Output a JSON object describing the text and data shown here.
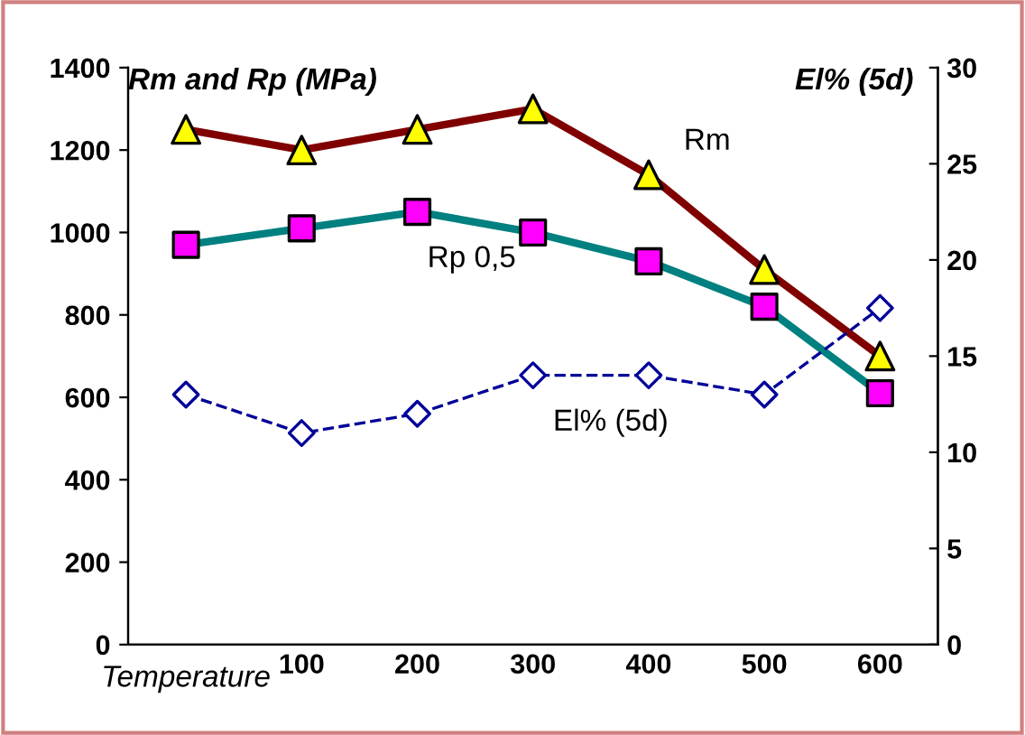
{
  "chart_data": {
    "type": "line",
    "ylabel": "Rm and Rp (MPa)",
    "y2label": "El% (5d)",
    "xlabel": "Temperature",
    "categories": [
      null,
      "100",
      "200",
      "300",
      "400",
      "500",
      "600"
    ],
    "series": [
      {
        "name": "Rm",
        "color": "#800000",
        "marker": "triangle",
        "colors": [
          "#ffff00",
          "#ffff00",
          "#ffff00",
          "#ffff00",
          "#ffff00",
          "#ffff00",
          "#ffff00"
        ],
        "line_style": "solid",
        "values": [
          1250,
          1200,
          1250,
          1300,
          1140,
          910,
          700
        ]
      },
      {
        "name": "Rp 0,5",
        "color": "#008080",
        "marker": "square",
        "colors": [
          "#ff00ff",
          "#ff00ff",
          "#ff00ff",
          "#ff00ff",
          "#ff00ff",
          "#ff00ff",
          "#ff00ff"
        ],
        "line_style": "solid",
        "values": [
          970,
          1010,
          1050,
          1000,
          930,
          820,
          610
        ]
      },
      {
        "name": "El% (5d)",
        "color": "#000099",
        "marker": "diamond",
        "colors": [
          "#ffffff",
          "#ffffff",
          "#ffffff",
          "#ffffff",
          "#ffffff",
          "#ffffff",
          "#ffffff"
        ],
        "line_style": "dashed",
        "axis": "y2",
        "values": [
          13,
          11,
          12,
          14,
          14,
          13,
          17.5
        ]
      }
    ],
    "ylim": [
      0,
      1400
    ],
    "yticks": [
      0,
      200,
      400,
      600,
      800,
      1000,
      1200,
      1400
    ],
    "y2lim": [
      0,
      30
    ],
    "y2ticks": [
      0,
      5,
      10,
      15,
      20,
      25,
      30
    ],
    "grid": false,
    "legend": false
  }
}
